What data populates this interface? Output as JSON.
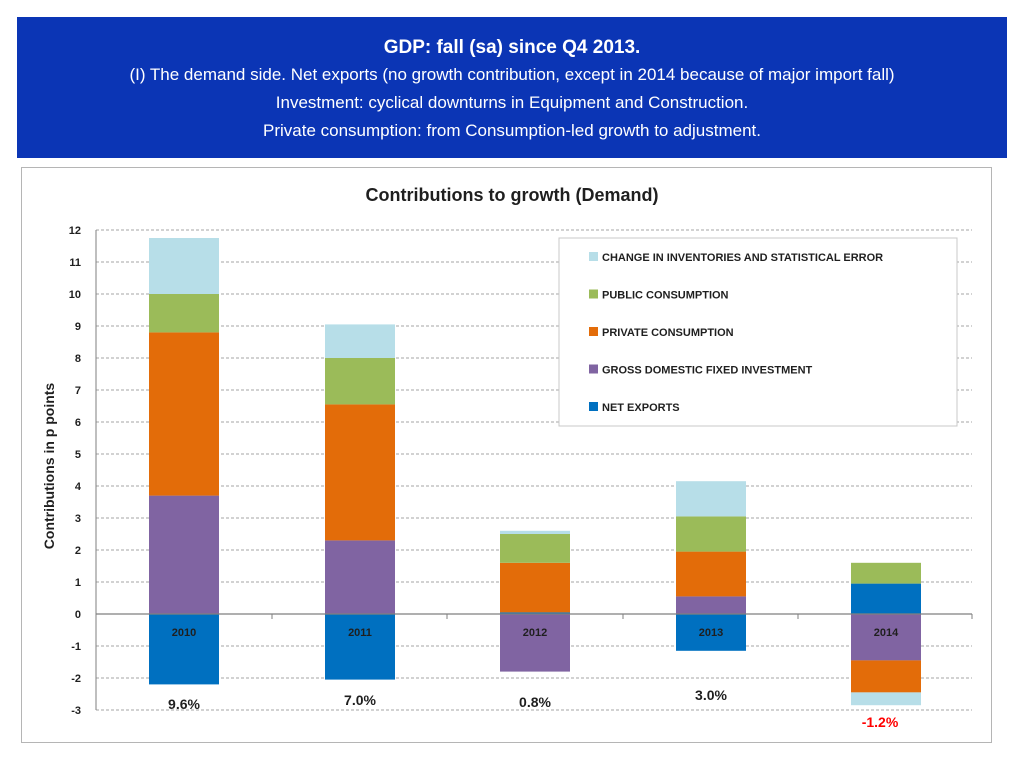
{
  "header": {
    "title": "GDP: fall (sa) since Q4 2013.",
    "lines": [
      "(I) The demand side. Net exports (no growth contribution, except in 2014 because of major import fall)",
      "Investment: cyclical downturns in Equipment and Construction.",
      "Private consumption: from Consumption-led growth to adjustment."
    ]
  },
  "colors": {
    "banner": "#0b35b5",
    "net_exports": "#0070c0",
    "investment": "#8064a2",
    "private_consumption": "#e36c09",
    "public_consumption": "#9bbb59",
    "inventories": "#b7dee8",
    "negative_label": "#ff0000"
  },
  "chart_data": {
    "type": "bar",
    "stacked": true,
    "title": "Contributions to growth (Demand)",
    "ylabel": "Contributions in p points",
    "xlabel": "",
    "ylim": [
      -3,
      12
    ],
    "yticks": [
      -3,
      -2,
      -1,
      0,
      1,
      2,
      3,
      4,
      5,
      6,
      7,
      8,
      9,
      10,
      11,
      12
    ],
    "grid": true,
    "legend_position": "top-right",
    "categories": [
      "2010",
      "2011",
      "2012",
      "2013",
      "2014"
    ],
    "totals": [
      "9.6%",
      "7.0%",
      "0.8%",
      "3.0%",
      "-1.2%"
    ],
    "series": [
      {
        "key": "inventories",
        "name": "CHANGE IN INVENTORIES AND STATISTICAL ERROR",
        "values": [
          1.75,
          1.05,
          0.1,
          1.1,
          -0.4
        ]
      },
      {
        "key": "public_consumption",
        "name": "PUBLIC CONSUMPTION",
        "values": [
          1.2,
          1.45,
          0.9,
          1.1,
          0.65
        ]
      },
      {
        "key": "private_consumption",
        "name": "PRIVATE CONSUMPTION",
        "values": [
          5.1,
          4.25,
          1.55,
          1.4,
          -1.0
        ]
      },
      {
        "key": "investment",
        "name": "GROSS DOMESTIC FIXED INVESTMENT",
        "values": [
          3.7,
          2.3,
          -1.8,
          0.55,
          -1.45
        ]
      },
      {
        "key": "net_exports",
        "name": "NET EXPORTS",
        "values": [
          -2.2,
          -2.05,
          0.05,
          -1.15,
          0.95
        ]
      }
    ]
  }
}
